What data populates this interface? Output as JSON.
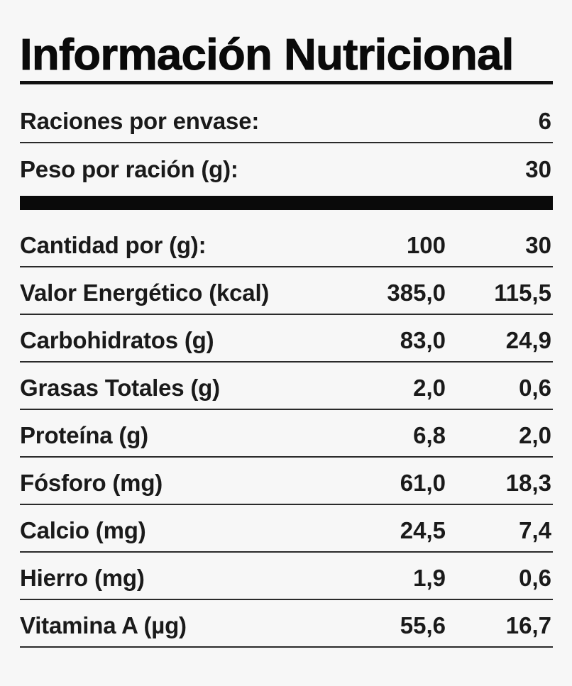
{
  "title": "Información Nutricional",
  "servings": {
    "per_container_label": "Raciones por envase:",
    "per_container_value": "6",
    "weight_label": "Peso por ración (g):",
    "weight_value": "30"
  },
  "table": {
    "header": {
      "label": "Cantidad por (g):",
      "col1": "100",
      "col2": "30"
    },
    "rows": [
      {
        "label": "Valor Energético (kcal)",
        "col1": "385,0",
        "col2": "115,5"
      },
      {
        "label": "Carbohidratos (g)",
        "col1": "83,0",
        "col2": "24,9"
      },
      {
        "label": "Grasas Totales (g)",
        "col1": "2,0",
        "col2": "0,6"
      },
      {
        "label": "Proteína (g)",
        "col1": "6,8",
        "col2": "2,0"
      },
      {
        "label": "Fósforo (mg)",
        "col1": "61,0",
        "col2": "18,3"
      },
      {
        "label": "Calcio (mg)",
        "col1": "24,5",
        "col2": "7,4"
      },
      {
        "label": "Hierro (mg)",
        "col1": "1,9",
        "col2": "0,6"
      },
      {
        "label": "Vitamina A (µg)",
        "col1": "55,6",
        "col2": "16,7"
      }
    ]
  },
  "colors": {
    "background": "#f7f7f7",
    "text": "#1a1a1a",
    "rule": "#0a0a0a"
  }
}
